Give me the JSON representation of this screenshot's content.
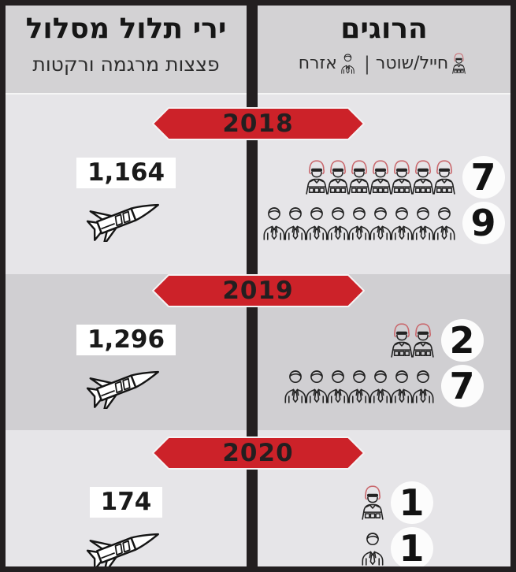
{
  "colors": {
    "accent": "#cc2229",
    "frame": "#231f20",
    "band-light": "#e6e5e8",
    "band-dark": "#d0cfd2",
    "header-bg": "#d3d2d4",
    "banner-text": "#231f20",
    "circle-bg": "#fcfcfc",
    "helmet-red": "#c9686d",
    "icon-stroke": "#232323"
  },
  "header": {
    "left": {
      "title": "ירי תלול מסלול",
      "subtitle": "פצצות מרגמה ורקטות"
    },
    "right": {
      "title": "הרוגים",
      "legend": {
        "soldier_label": "חייל/שוטר",
        "divider": "|",
        "civilian_label": "אזרח"
      }
    }
  },
  "sections": [
    {
      "year": "2018",
      "launches": "1,164",
      "soldiers": 7,
      "civilians": 9
    },
    {
      "year": "2019",
      "launches": "1,296",
      "soldiers": 2,
      "civilians": 7
    },
    {
      "year": "2020",
      "launches": "174",
      "soldiers": 1,
      "civilians": 1
    }
  ],
  "chart_data": {
    "type": "table",
    "title_right_column": "הרוגים",
    "title_left_column": "ירי תלול מסלול",
    "subtitle_left_column": "פצצות מרגמה ורקטות",
    "legend_entries": [
      "חייל/שוטר",
      "אזרח"
    ],
    "categories": [
      "2018",
      "2019",
      "2020"
    ],
    "series": [
      {
        "name": "הרוגים - חייל/שוטר",
        "values": [
          7,
          2,
          1
        ]
      },
      {
        "name": "הרוגים - אזרח",
        "values": [
          9,
          7,
          1
        ]
      },
      {
        "name": "ירי תלול מסלול - פצצות מרגמה ורקטות",
        "values": [
          1164,
          1296,
          174
        ]
      }
    ]
  }
}
